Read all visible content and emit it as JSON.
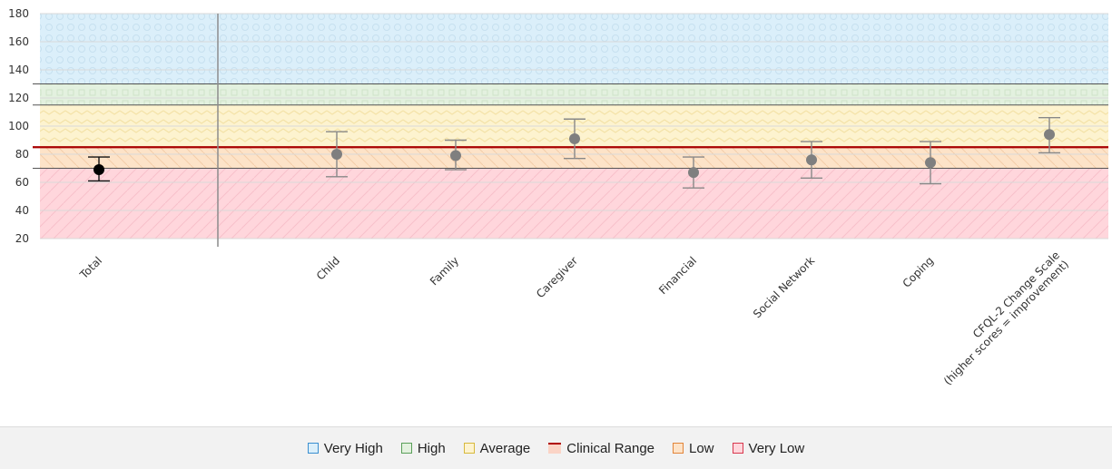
{
  "chart_data": {
    "type": "scatter",
    "ylim": [
      20,
      180
    ],
    "yticks": [
      20,
      40,
      60,
      80,
      100,
      120,
      140,
      160,
      180
    ],
    "categories": [
      "Total",
      "Child",
      "Family",
      "Caregiver",
      "Financial",
      "Social Network",
      "Coping",
      "CFQL-2 Change Scale\n(higher scores = improvement)"
    ],
    "points": [
      {
        "category": "Total",
        "value": 69,
        "low": 61,
        "high": 78
      },
      {
        "category": "Child",
        "value": 80,
        "low": 64,
        "high": 96
      },
      {
        "category": "Family",
        "value": 79,
        "low": 69,
        "high": 90
      },
      {
        "category": "Caregiver",
        "value": 91,
        "low": 77,
        "high": 105
      },
      {
        "category": "Financial",
        "value": 67,
        "low": 56,
        "high": 78
      },
      {
        "category": "Social Network",
        "value": 76,
        "low": 63,
        "high": 89
      },
      {
        "category": "Coping",
        "value": 74,
        "low": 59,
        "high": 89
      },
      {
        "category": "CFQL-2 Change Scale\n(higher scores = improvement)",
        "value": 94,
        "low": 81,
        "high": 106
      }
    ],
    "bands": [
      {
        "name": "Very Low",
        "from": 20,
        "to": 70,
        "color": "#ffd6dc"
      },
      {
        "name": "Low",
        "from": 70,
        "to": 85,
        "color": "#fde3c8"
      },
      {
        "name": "Average",
        "from": 85,
        "to": 115,
        "color": "#fdf3cf"
      },
      {
        "name": "High",
        "from": 115,
        "to": 130,
        "color": "#e3f1df"
      },
      {
        "name": "Very High",
        "from": 130,
        "to": 180,
        "color": "#dbeffa"
      }
    ],
    "clinical_line": 85,
    "grid": true
  },
  "legend": {
    "items": [
      {
        "label": "Very High",
        "type": "box",
        "fill": "#dbeffa",
        "border": "#3b8fd0"
      },
      {
        "label": "High",
        "type": "box",
        "fill": "#e3f1df",
        "border": "#5aa05a"
      },
      {
        "label": "Average",
        "type": "box",
        "fill": "#fdf3cf",
        "border": "#d7b93c"
      },
      {
        "label": "Clinical Range",
        "type": "line",
        "fill": "#fbd4c6",
        "border": "#b00000"
      },
      {
        "label": "Low",
        "type": "box",
        "fill": "#fde3c8",
        "border": "#e2853a"
      },
      {
        "label": "Very Low",
        "type": "box",
        "fill": "#ffd6dc",
        "border": "#d8384e"
      }
    ]
  }
}
